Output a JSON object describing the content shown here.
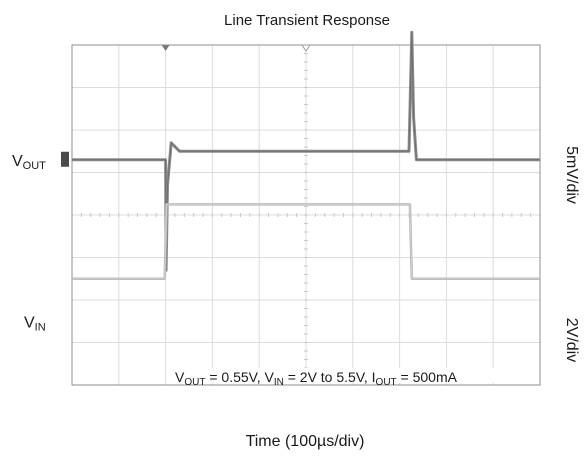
{
  "chart_data": {
    "type": "line",
    "title": "Line Transient Response",
    "xlabel": "Time (100µs/div)",
    "x_unit": "µs",
    "x_per_div": 100,
    "x_divisions": 10,
    "xlim": [
      0,
      1000
    ],
    "grid": true,
    "channels": [
      {
        "name": "VOUT",
        "label_main": "V",
        "label_sub": "OUT",
        "scale_label": "5mV/div",
        "color": "#8c8c8c",
        "ref_div": 5.3,
        "units_per_div": 5,
        "points": [
          [
            0,
            0
          ],
          [
            200,
            0
          ],
          [
            201,
            -13
          ],
          [
            204,
            -3
          ],
          [
            212,
            2
          ],
          [
            230,
            1
          ],
          [
            300,
            1
          ],
          [
            400,
            1
          ],
          [
            500,
            1
          ],
          [
            600,
            1
          ],
          [
            720,
            1
          ],
          [
            726,
            15
          ],
          [
            730,
            5
          ],
          [
            736,
            0
          ],
          [
            760,
            0
          ],
          [
            1000,
            0
          ]
        ]
      },
      {
        "name": "VIN",
        "label_main": "V",
        "label_sub": "IN",
        "scale_label": "2V/div",
        "color": "#b8b8b8",
        "ref_div": 1.5,
        "units_per_div": 2,
        "points": [
          [
            0,
            2
          ],
          [
            198,
            2
          ],
          [
            202,
            5.5
          ],
          [
            722,
            5.5
          ],
          [
            726,
            2
          ],
          [
            1000,
            2
          ]
        ]
      }
    ],
    "annotation": {
      "parts": [
        {
          "t": "V"
        },
        {
          "t": "OUT",
          "sub": true
        },
        {
          "t": " = 0.55V, V"
        },
        {
          "t": "IN",
          "sub": true
        },
        {
          "t": " = 2V to 5.5V, I"
        },
        {
          "t": "OUT",
          "sub": true
        },
        {
          "t": " = 500mA"
        }
      ]
    }
  }
}
